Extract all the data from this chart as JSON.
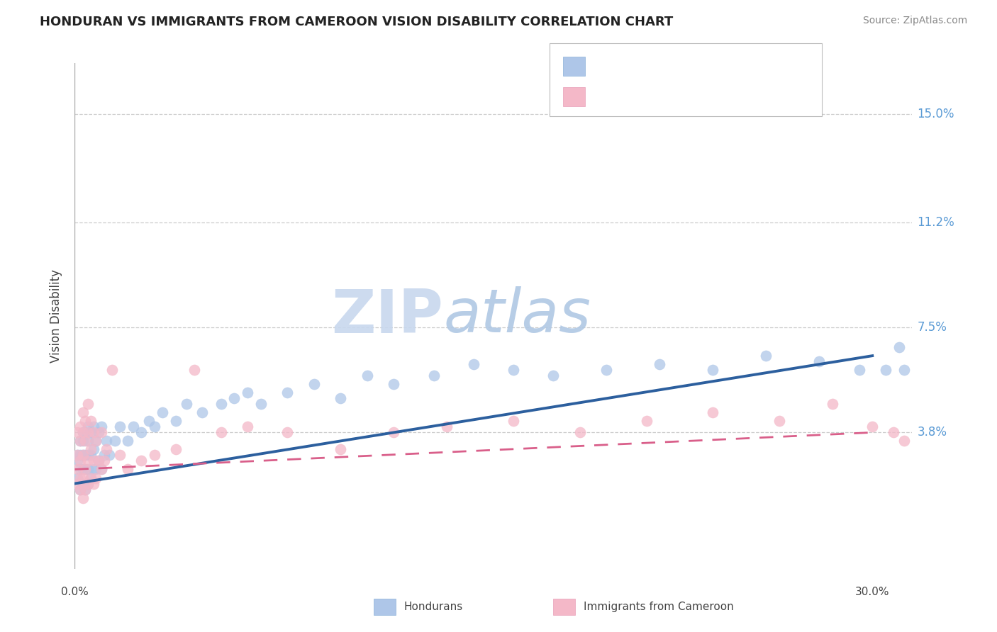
{
  "title": "HONDURAN VS IMMIGRANTS FROM CAMEROON VISION DISABILITY CORRELATION CHART",
  "source": "Source: ZipAtlas.com",
  "ylabel": "Vision Disability",
  "yticks": [
    0.0,
    0.038,
    0.075,
    0.112,
    0.15
  ],
  "ytick_labels": [
    "",
    "3.8%",
    "7.5%",
    "11.2%",
    "15.0%"
  ],
  "xlim": [
    0.0,
    0.315
  ],
  "ylim": [
    -0.01,
    0.168
  ],
  "color_blue": "#aec6e8",
  "color_pink": "#f4b8c8",
  "trend_blue": "#2c5f9e",
  "trend_pink": "#d95f8a",
  "honduran_x": [
    0.001,
    0.001,
    0.001,
    0.002,
    0.002,
    0.002,
    0.002,
    0.003,
    0.003,
    0.003,
    0.003,
    0.003,
    0.004,
    0.004,
    0.004,
    0.004,
    0.005,
    0.005,
    0.005,
    0.005,
    0.005,
    0.006,
    0.006,
    0.006,
    0.007,
    0.007,
    0.007,
    0.008,
    0.008,
    0.009,
    0.009,
    0.01,
    0.01,
    0.011,
    0.012,
    0.013,
    0.015,
    0.017,
    0.02,
    0.022,
    0.025,
    0.028,
    0.03,
    0.033,
    0.038,
    0.042,
    0.048,
    0.055,
    0.06,
    0.065,
    0.07,
    0.08,
    0.09,
    0.1,
    0.11,
    0.12,
    0.135,
    0.15,
    0.165,
    0.18,
    0.2,
    0.22,
    0.24,
    0.26,
    0.28,
    0.295,
    0.305,
    0.31,
    0.312
  ],
  "honduran_y": [
    0.022,
    0.028,
    0.03,
    0.018,
    0.025,
    0.03,
    0.035,
    0.02,
    0.025,
    0.03,
    0.035,
    0.038,
    0.018,
    0.025,
    0.03,
    0.038,
    0.02,
    0.025,
    0.03,
    0.035,
    0.04,
    0.022,
    0.03,
    0.038,
    0.025,
    0.032,
    0.04,
    0.025,
    0.035,
    0.028,
    0.038,
    0.025,
    0.04,
    0.03,
    0.035,
    0.03,
    0.035,
    0.04,
    0.035,
    0.04,
    0.038,
    0.042,
    0.04,
    0.045,
    0.042,
    0.048,
    0.045,
    0.048,
    0.05,
    0.052,
    0.048,
    0.052,
    0.055,
    0.05,
    0.058,
    0.055,
    0.058,
    0.062,
    0.06,
    0.058,
    0.06,
    0.062,
    0.06,
    0.065,
    0.063,
    0.06,
    0.06,
    0.068,
    0.06
  ],
  "cameroon_x": [
    0.001,
    0.001,
    0.001,
    0.001,
    0.002,
    0.002,
    0.002,
    0.002,
    0.002,
    0.003,
    0.003,
    0.003,
    0.003,
    0.003,
    0.004,
    0.004,
    0.004,
    0.004,
    0.005,
    0.005,
    0.005,
    0.005,
    0.006,
    0.006,
    0.006,
    0.007,
    0.007,
    0.007,
    0.008,
    0.008,
    0.009,
    0.01,
    0.01,
    0.011,
    0.012,
    0.014,
    0.017,
    0.02,
    0.025,
    0.03,
    0.038,
    0.045,
    0.055,
    0.065,
    0.08,
    0.1,
    0.12,
    0.14,
    0.165,
    0.19,
    0.215,
    0.24,
    0.265,
    0.285,
    0.3,
    0.308,
    0.312
  ],
  "cameroon_y": [
    0.02,
    0.025,
    0.03,
    0.038,
    0.018,
    0.022,
    0.028,
    0.035,
    0.04,
    0.015,
    0.022,
    0.03,
    0.038,
    0.045,
    0.018,
    0.025,
    0.035,
    0.042,
    0.02,
    0.028,
    0.038,
    0.048,
    0.022,
    0.032,
    0.042,
    0.02,
    0.028,
    0.038,
    0.022,
    0.035,
    0.028,
    0.025,
    0.038,
    0.028,
    0.032,
    0.06,
    0.03,
    0.025,
    0.028,
    0.03,
    0.032,
    0.06,
    0.038,
    0.04,
    0.038,
    0.032,
    0.038,
    0.04,
    0.042,
    0.038,
    0.042,
    0.045,
    0.042,
    0.048,
    0.04,
    0.038,
    0.035
  ]
}
